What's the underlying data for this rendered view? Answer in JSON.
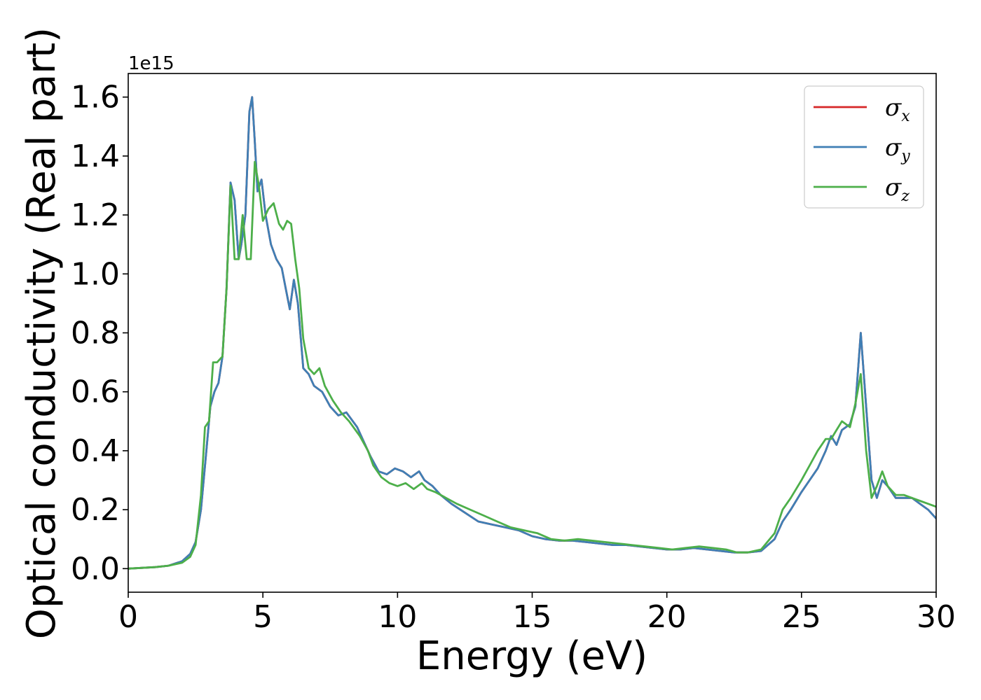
{
  "chart_data": {
    "type": "line",
    "xlabel": "Energy (eV)",
    "ylabel": "Optical conductivity (Real part)",
    "y_offset_label": "1e15",
    "xlim": [
      0,
      30
    ],
    "ylim": [
      -0.08,
      1.68
    ],
    "xticks": [
      0,
      5,
      10,
      15,
      20,
      25,
      30
    ],
    "yticks": [
      0.0,
      0.2,
      0.4,
      0.6,
      0.8,
      1.0,
      1.2,
      1.4,
      1.6
    ],
    "xtick_labels": [
      "0",
      "5",
      "10",
      "15",
      "20",
      "25",
      "30"
    ],
    "ytick_labels": [
      "0.0",
      "0.2",
      "0.4",
      "0.6",
      "0.8",
      "1.0",
      "1.2",
      "1.4",
      "1.6"
    ],
    "grid": false,
    "legend_position": "top-right",
    "series": [
      {
        "name": "σx",
        "legend_base": "σ",
        "legend_sub": "x",
        "color": "#d62728",
        "x": [
          0,
          1.0,
          1.5,
          2.0,
          2.3,
          2.5,
          2.7,
          2.9,
          3.05,
          3.2,
          3.35,
          3.5,
          3.65,
          3.8,
          3.95,
          4.1,
          4.2,
          4.35,
          4.5,
          4.6,
          4.7,
          4.8,
          4.95,
          5.1,
          5.3,
          5.5,
          5.7,
          5.85,
          6.0,
          6.15,
          6.3,
          6.5,
          6.7,
          6.9,
          7.2,
          7.5,
          7.8,
          8.1,
          8.5,
          8.8,
          9.0,
          9.3,
          9.6,
          9.9,
          10.2,
          10.5,
          10.8,
          11.0,
          11.3,
          11.6,
          12.0,
          12.5,
          13.0,
          13.5,
          14.0,
          14.5,
          15.0,
          15.5,
          16.0,
          16.5,
          17.0,
          17.5,
          18.0,
          18.5,
          19.0,
          19.5,
          20.0,
          20.5,
          21.0,
          21.5,
          22.0,
          22.5,
          23.0,
          23.5,
          24.0,
          24.3,
          24.6,
          25.0,
          25.3,
          25.6,
          25.9,
          26.1,
          26.3,
          26.5,
          26.8,
          27.0,
          27.2,
          27.4,
          27.6,
          27.8,
          28.0,
          28.2,
          28.5,
          28.8,
          29.1,
          29.4,
          29.7,
          30.0
        ],
        "y": [
          0.0,
          0.005,
          0.01,
          0.025,
          0.05,
          0.09,
          0.2,
          0.4,
          0.55,
          0.6,
          0.63,
          0.72,
          0.95,
          1.31,
          1.25,
          1.05,
          1.1,
          1.2,
          1.55,
          1.6,
          1.45,
          1.28,
          1.32,
          1.2,
          1.1,
          1.05,
          1.02,
          0.95,
          0.88,
          0.98,
          0.9,
          0.68,
          0.66,
          0.62,
          0.6,
          0.55,
          0.52,
          0.53,
          0.48,
          0.42,
          0.38,
          0.33,
          0.32,
          0.34,
          0.33,
          0.31,
          0.33,
          0.3,
          0.28,
          0.25,
          0.22,
          0.19,
          0.16,
          0.15,
          0.14,
          0.13,
          0.11,
          0.1,
          0.095,
          0.095,
          0.09,
          0.085,
          0.08,
          0.08,
          0.075,
          0.07,
          0.065,
          0.065,
          0.07,
          0.065,
          0.06,
          0.055,
          0.055,
          0.06,
          0.1,
          0.16,
          0.2,
          0.26,
          0.3,
          0.34,
          0.4,
          0.45,
          0.42,
          0.47,
          0.49,
          0.55,
          0.8,
          0.55,
          0.3,
          0.24,
          0.3,
          0.28,
          0.24,
          0.24,
          0.24,
          0.22,
          0.2,
          0.17
        ]
      },
      {
        "name": "σy",
        "legend_base": "σ",
        "legend_sub": "y",
        "color": "#3f7fb5",
        "x": [
          0,
          1.0,
          1.5,
          2.0,
          2.3,
          2.5,
          2.7,
          2.9,
          3.05,
          3.2,
          3.35,
          3.5,
          3.65,
          3.8,
          3.95,
          4.1,
          4.2,
          4.35,
          4.5,
          4.6,
          4.7,
          4.8,
          4.95,
          5.1,
          5.3,
          5.5,
          5.7,
          5.85,
          6.0,
          6.15,
          6.3,
          6.5,
          6.7,
          6.9,
          7.2,
          7.5,
          7.8,
          8.1,
          8.5,
          8.8,
          9.0,
          9.3,
          9.6,
          9.9,
          10.2,
          10.5,
          10.8,
          11.0,
          11.3,
          11.6,
          12.0,
          12.5,
          13.0,
          13.5,
          14.0,
          14.5,
          15.0,
          15.5,
          16.0,
          16.5,
          17.0,
          17.5,
          18.0,
          18.5,
          19.0,
          19.5,
          20.0,
          20.5,
          21.0,
          21.5,
          22.0,
          22.5,
          23.0,
          23.5,
          24.0,
          24.3,
          24.6,
          25.0,
          25.3,
          25.6,
          25.9,
          26.1,
          26.3,
          26.5,
          26.8,
          27.0,
          27.2,
          27.4,
          27.6,
          27.8,
          28.0,
          28.2,
          28.5,
          28.8,
          29.1,
          29.4,
          29.7,
          30.0
        ],
        "y": [
          0.0,
          0.005,
          0.01,
          0.025,
          0.05,
          0.09,
          0.2,
          0.4,
          0.55,
          0.6,
          0.63,
          0.72,
          0.95,
          1.31,
          1.25,
          1.05,
          1.1,
          1.2,
          1.55,
          1.6,
          1.45,
          1.28,
          1.32,
          1.2,
          1.1,
          1.05,
          1.02,
          0.95,
          0.88,
          0.98,
          0.9,
          0.68,
          0.66,
          0.62,
          0.6,
          0.55,
          0.52,
          0.53,
          0.48,
          0.42,
          0.38,
          0.33,
          0.32,
          0.34,
          0.33,
          0.31,
          0.33,
          0.3,
          0.28,
          0.25,
          0.22,
          0.19,
          0.16,
          0.15,
          0.14,
          0.13,
          0.11,
          0.1,
          0.095,
          0.095,
          0.09,
          0.085,
          0.08,
          0.08,
          0.075,
          0.07,
          0.065,
          0.065,
          0.07,
          0.065,
          0.06,
          0.055,
          0.055,
          0.06,
          0.1,
          0.16,
          0.2,
          0.26,
          0.3,
          0.34,
          0.4,
          0.45,
          0.42,
          0.47,
          0.49,
          0.55,
          0.8,
          0.55,
          0.3,
          0.24,
          0.3,
          0.28,
          0.24,
          0.24,
          0.24,
          0.22,
          0.2,
          0.17
        ]
      },
      {
        "name": "σz",
        "legend_base": "σ",
        "legend_sub": "z",
        "color": "#4daf4a",
        "x": [
          0,
          1.0,
          1.5,
          2.0,
          2.3,
          2.5,
          2.7,
          2.85,
          3.0,
          3.15,
          3.3,
          3.5,
          3.65,
          3.8,
          3.95,
          4.1,
          4.25,
          4.4,
          4.55,
          4.7,
          4.85,
          5.0,
          5.2,
          5.4,
          5.6,
          5.75,
          5.9,
          6.05,
          6.2,
          6.35,
          6.5,
          6.7,
          6.9,
          7.1,
          7.3,
          7.6,
          7.9,
          8.2,
          8.6,
          8.9,
          9.1,
          9.4,
          9.7,
          10.0,
          10.3,
          10.6,
          10.9,
          11.1,
          11.4,
          11.8,
          12.2,
          12.7,
          13.2,
          13.7,
          14.2,
          14.7,
          15.2,
          15.7,
          16.2,
          16.7,
          17.2,
          17.7,
          18.2,
          18.7,
          19.2,
          19.7,
          20.2,
          20.7,
          21.2,
          21.7,
          22.2,
          22.6,
          23.0,
          23.5,
          24.0,
          24.3,
          24.6,
          25.0,
          25.3,
          25.6,
          25.9,
          26.1,
          26.3,
          26.5,
          26.8,
          27.0,
          27.2,
          27.4,
          27.6,
          27.8,
          28.0,
          28.2,
          28.5,
          28.8,
          29.1,
          29.4,
          29.7,
          30.0
        ],
        "y": [
          0.0,
          0.005,
          0.01,
          0.02,
          0.04,
          0.08,
          0.25,
          0.48,
          0.5,
          0.7,
          0.7,
          0.72,
          0.95,
          1.3,
          1.05,
          1.05,
          1.2,
          1.05,
          1.05,
          1.38,
          1.3,
          1.18,
          1.22,
          1.24,
          1.17,
          1.15,
          1.18,
          1.17,
          1.05,
          0.95,
          0.78,
          0.68,
          0.66,
          0.68,
          0.62,
          0.57,
          0.53,
          0.5,
          0.45,
          0.4,
          0.35,
          0.31,
          0.29,
          0.28,
          0.29,
          0.27,
          0.29,
          0.27,
          0.26,
          0.24,
          0.22,
          0.2,
          0.18,
          0.16,
          0.14,
          0.13,
          0.12,
          0.1,
          0.095,
          0.1,
          0.095,
          0.09,
          0.085,
          0.08,
          0.075,
          0.07,
          0.065,
          0.07,
          0.075,
          0.07,
          0.065,
          0.055,
          0.055,
          0.065,
          0.12,
          0.2,
          0.24,
          0.3,
          0.35,
          0.4,
          0.44,
          0.44,
          0.47,
          0.5,
          0.48,
          0.56,
          0.66,
          0.4,
          0.24,
          0.28,
          0.33,
          0.28,
          0.25,
          0.25,
          0.24,
          0.23,
          0.22,
          0.21
        ]
      }
    ]
  }
}
